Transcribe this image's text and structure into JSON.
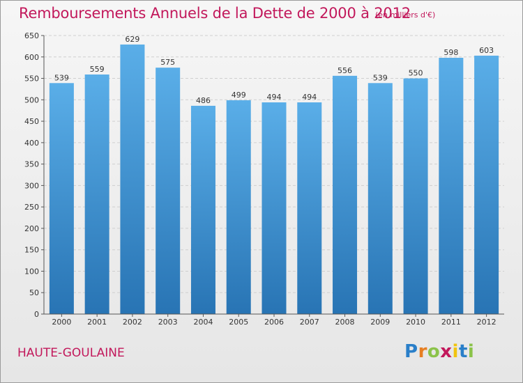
{
  "header": {
    "title": "Remboursements Annuels de la Dette de 2000 à 2012",
    "subtitle": "(en milliers d'€)"
  },
  "footer": {
    "commune": "HAUTE-GOULAINE",
    "logo_letters": [
      "P",
      "r",
      "o",
      "x",
      "i",
      "t",
      "i"
    ]
  },
  "colors": {
    "title": "#c2185b",
    "bar_top": "#5aaee8",
    "bar_bottom": "#2874b4",
    "grid": "#cfcfcf"
  },
  "chart_data": {
    "type": "bar",
    "title": "Remboursements Annuels de la Dette de 2000 à 2012",
    "categories": [
      "2000",
      "2001",
      "2002",
      "2003",
      "2004",
      "2005",
      "2006",
      "2007",
      "2008",
      "2009",
      "2010",
      "2011",
      "2012"
    ],
    "values": [
      539,
      559,
      629,
      575,
      486,
      499,
      494,
      494,
      556,
      539,
      550,
      598,
      603
    ],
    "ylim": [
      0,
      650
    ],
    "yticks": [
      0,
      50,
      100,
      150,
      200,
      250,
      300,
      350,
      400,
      450,
      500,
      550,
      600,
      650
    ],
    "grid": true,
    "data_labels": true
  }
}
